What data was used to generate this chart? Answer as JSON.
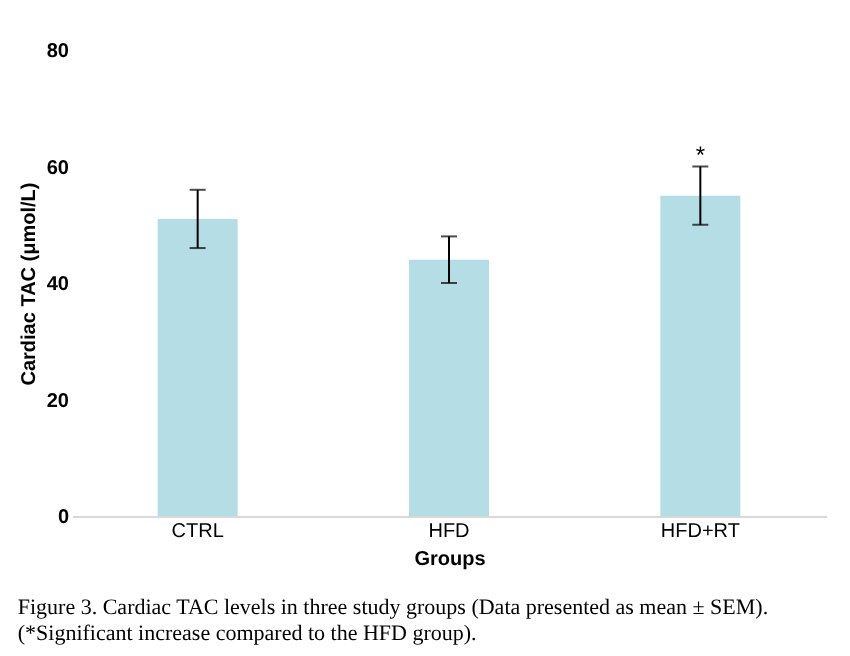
{
  "chart_data": {
    "type": "bar",
    "xlabel": "Groups",
    "ylabel": "Cardiac TAC (μmol/L)",
    "categories": [
      "CTRL",
      "HFD",
      "HFD+RT"
    ],
    "values": [
      51,
      44,
      55
    ],
    "errors": [
      5,
      4,
      5
    ],
    "color": "#b4dde6",
    "ylim": [
      0,
      80
    ],
    "yticks": [
      0,
      20,
      40,
      60,
      80
    ],
    "grid": false,
    "annotations": [
      {
        "text": "*",
        "x": "HFD+RT",
        "y": 62
      },
      "Figure 3. Cardiac TAC levels in three study groups (Data presented as mean ± SEM).",
      "(*Significant increase compared to the HFD group)."
    ]
  }
}
